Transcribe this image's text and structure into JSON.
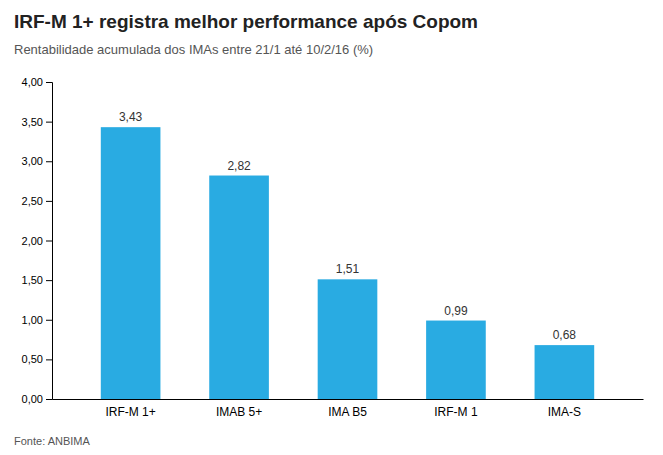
{
  "chart_data": {
    "type": "bar",
    "title": "IRF-M 1+ registra melhor performance após Copom",
    "subtitle": "Rentabilidade acumulada dos  IMAs entre 21/1 até 10/2/16 (%)",
    "source": "Fonte: ANBIMA",
    "categories": [
      "IRF-M 1+",
      "IMAB 5+",
      "IMA B5",
      "IRF-M 1",
      "IMA-S"
    ],
    "values": [
      3.43,
      2.82,
      1.51,
      0.99,
      0.68
    ],
    "value_labels": [
      "3,43",
      "2,82",
      "1,51",
      "0,99",
      "0,68"
    ],
    "data_labels": true,
    "color": "#29ABE2",
    "ylim": [
      0,
      4.0
    ],
    "yticks": [
      {
        "value": 0.0,
        "label": "0,00"
      },
      {
        "value": 0.5,
        "label": "0,50"
      },
      {
        "value": 1.0,
        "label": "1,00"
      },
      {
        "value": 1.5,
        "label": "1,50"
      },
      {
        "value": 2.0,
        "label": "2,00"
      },
      {
        "value": 2.5,
        "label": "2,50"
      },
      {
        "value": 3.0,
        "label": "3,00"
      },
      {
        "value": 3.5,
        "label": "3,50"
      },
      {
        "value": 4.0,
        "label": "4,00"
      }
    ],
    "grid": false
  }
}
